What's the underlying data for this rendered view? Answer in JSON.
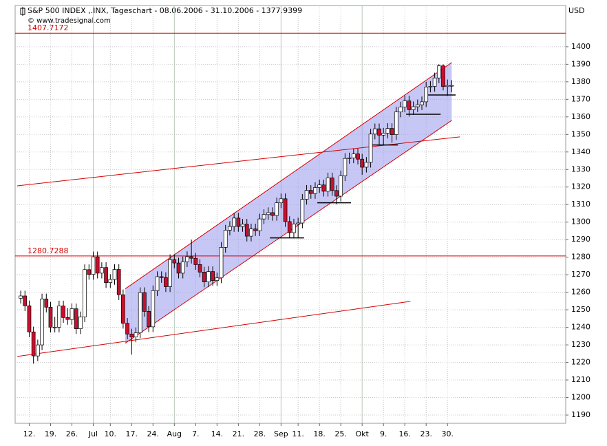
{
  "chart_data": {
    "type": "candlestick",
    "title": "S&P 500 INDEX ,.INX, Tageschart - 08.06.2006 - 31.10.2006 - 1377.9399",
    "subtitle": "© www.tradesignal.com",
    "y_unit": "USD",
    "xlim": [
      -1.3,
      127.7
    ],
    "ylim": [
      1185.3,
      1423.5
    ],
    "yticks": [
      1190,
      1200,
      1210,
      1220,
      1230,
      1240,
      1250,
      1260,
      1270,
      1280,
      1290,
      1300,
      1310,
      1320,
      1330,
      1340,
      1350,
      1360,
      1370,
      1380,
      1390,
      1400
    ],
    "xticks": [
      {
        "value": 2,
        "label": "12."
      },
      {
        "value": 7,
        "label": "19."
      },
      {
        "value": 12,
        "label": "26."
      },
      {
        "value": 17,
        "label": "Jul"
      },
      {
        "value": 21,
        "label": "10."
      },
      {
        "value": 26,
        "label": "17."
      },
      {
        "value": 31,
        "label": "24."
      },
      {
        "value": 36,
        "label": "Aug"
      },
      {
        "value": 41,
        "label": "7."
      },
      {
        "value": 46,
        "label": "14."
      },
      {
        "value": 51,
        "label": "21."
      },
      {
        "value": 56,
        "label": "28."
      },
      {
        "value": 61,
        "label": "Sep"
      },
      {
        "value": 65,
        "label": "11."
      },
      {
        "value": 70,
        "label": "18."
      },
      {
        "value": 75,
        "label": "25."
      },
      {
        "value": 80,
        "label": "Okt"
      },
      {
        "value": 85,
        "label": "9."
      },
      {
        "value": 90,
        "label": "16."
      },
      {
        "value": 95,
        "label": "23."
      },
      {
        "value": 100,
        "label": "30."
      }
    ],
    "grid": true,
    "up_color": "#ffffff",
    "down_color": "#c8102e",
    "ohlc": [
      [
        1256.6,
        1260.9,
        1253.6,
        1257.9
      ],
      [
        1257.9,
        1260.9,
        1249.3,
        1252.3
      ],
      [
        1252.3,
        1255.3,
        1234.4,
        1237.4
      ],
      [
        1237.4,
        1240.4,
        1219.3,
        1223.7
      ],
      [
        1223.7,
        1233.0,
        1220.7,
        1230.0
      ],
      [
        1230.0,
        1259.2,
        1227.0,
        1256.2
      ],
      [
        1256.2,
        1259.2,
        1248.5,
        1251.5
      ],
      [
        1251.5,
        1254.5,
        1237.1,
        1240.1
      ],
      [
        1240.1,
        1246.0,
        1237.1,
        1240.1
      ],
      [
        1240.1,
        1255.2,
        1237.1,
        1252.2
      ],
      [
        1252.2,
        1255.2,
        1242.6,
        1245.6
      ],
      [
        1245.6,
        1251.0,
        1241.5,
        1244.5
      ],
      [
        1244.5,
        1253.6,
        1241.5,
        1250.6
      ],
      [
        1250.6,
        1253.6,
        1236.2,
        1239.2
      ],
      [
        1239.2,
        1249.0,
        1236.2,
        1246.0
      ],
      [
        1246.0,
        1275.9,
        1243.0,
        1272.9
      ],
      [
        1272.9,
        1275.9,
        1267.2,
        1270.2
      ],
      [
        1270.2,
        1283.2,
        1267.2,
        1280.2
      ],
      [
        1280.2,
        1283.2,
        1267.9,
        1270.9
      ],
      [
        1270.9,
        1277.1,
        1267.9,
        1274.1
      ],
      [
        1274.1,
        1277.1,
        1262.5,
        1265.5
      ],
      [
        1265.5,
        1270.3,
        1262.5,
        1267.3
      ],
      [
        1267.3,
        1276.0,
        1264.3,
        1273.0
      ],
      [
        1273.0,
        1276.0,
        1255.6,
        1258.6
      ],
      [
        1258.6,
        1261.6,
        1239.3,
        1242.3
      ],
      [
        1242.3,
        1245.3,
        1233.2,
        1236.2
      ],
      [
        1236.2,
        1239.2,
        1224.5,
        1234.5
      ],
      [
        1234.5,
        1239.9,
        1231.5,
        1236.9
      ],
      [
        1236.9,
        1262.8,
        1233.9,
        1259.8
      ],
      [
        1259.8,
        1262.8,
        1246.1,
        1249.1
      ],
      [
        1249.1,
        1252.1,
        1237.3,
        1240.3
      ],
      [
        1240.3,
        1263.9,
        1237.3,
        1260.9
      ],
      [
        1260.9,
        1271.9,
        1257.9,
        1268.9
      ],
      [
        1268.9,
        1271.9,
        1265.4,
        1268.4
      ],
      [
        1268.4,
        1271.4,
        1260.2,
        1263.2
      ],
      [
        1263.2,
        1281.6,
        1260.2,
        1278.6
      ],
      [
        1278.6,
        1281.6,
        1273.7,
        1276.7
      ],
      [
        1276.7,
        1279.7,
        1267.9,
        1270.9
      ],
      [
        1270.9,
        1280.4,
        1267.9,
        1277.4
      ],
      [
        1277.4,
        1283.3,
        1274.4,
        1280.3
      ],
      [
        1280.3,
        1290.0,
        1276.4,
        1279.4
      ],
      [
        1279.4,
        1282.4,
        1272.8,
        1275.8
      ],
      [
        1275.8,
        1278.8,
        1268.5,
        1271.5
      ],
      [
        1271.5,
        1274.5,
        1262.9,
        1265.9
      ],
      [
        1265.9,
        1274.8,
        1262.9,
        1271.8
      ],
      [
        1271.8,
        1274.8,
        1263.7,
        1266.7
      ],
      [
        1266.7,
        1271.2,
        1263.7,
        1268.2
      ],
      [
        1268.2,
        1288.6,
        1265.2,
        1285.6
      ],
      [
        1285.6,
        1298.4,
        1282.6,
        1295.4
      ],
      [
        1295.4,
        1300.5,
        1292.4,
        1297.5
      ],
      [
        1297.5,
        1305.3,
        1294.5,
        1302.3
      ],
      [
        1302.3,
        1305.3,
        1294.5,
        1297.5
      ],
      [
        1297.5,
        1301.8,
        1294.5,
        1298.8
      ],
      [
        1298.8,
        1301.8,
        1289.0,
        1292.0
      ],
      [
        1292.0,
        1299.1,
        1289.0,
        1296.1
      ],
      [
        1296.1,
        1299.1,
        1292.1,
        1295.1
      ],
      [
        1295.1,
        1304.8,
        1292.1,
        1301.8
      ],
      [
        1301.8,
        1307.3,
        1298.8,
        1304.3
      ],
      [
        1304.3,
        1308.4,
        1301.3,
        1305.4
      ],
      [
        1305.4,
        1308.4,
        1300.8,
        1303.8
      ],
      [
        1303.8,
        1314.0,
        1300.8,
        1311.0
      ],
      [
        1311.0,
        1316.3,
        1308.0,
        1313.3
      ],
      [
        1313.3,
        1316.3,
        1297.3,
        1300.3
      ],
      [
        1300.3,
        1303.3,
        1291.0,
        1294.0
      ],
      [
        1294.0,
        1301.9,
        1291.0,
        1298.9
      ],
      [
        1298.9,
        1302.5,
        1290.8,
        1299.5
      ],
      [
        1299.5,
        1316.0,
        1296.5,
        1313.0
      ],
      [
        1313.0,
        1321.1,
        1310.0,
        1318.1
      ],
      [
        1318.1,
        1321.1,
        1313.3,
        1316.3
      ],
      [
        1316.3,
        1322.7,
        1313.3,
        1319.7
      ],
      [
        1319.7,
        1324.2,
        1316.7,
        1321.2
      ],
      [
        1321.2,
        1324.2,
        1314.6,
        1317.6
      ],
      [
        1317.6,
        1328.2,
        1314.6,
        1325.2
      ],
      [
        1325.2,
        1328.2,
        1315.0,
        1318.0
      ],
      [
        1318.0,
        1321.0,
        1310.1,
        1314.8
      ],
      [
        1314.8,
        1329.4,
        1311.8,
        1326.4
      ],
      [
        1326.4,
        1339.3,
        1323.4,
        1336.3
      ],
      [
        1336.3,
        1339.6,
        1333.3,
        1336.6
      ],
      [
        1336.6,
        1341.9,
        1333.6,
        1338.9
      ],
      [
        1338.9,
        1341.9,
        1332.9,
        1335.9
      ],
      [
        1335.9,
        1338.9,
        1327.0,
        1331.3
      ],
      [
        1331.3,
        1337.1,
        1328.3,
        1334.1
      ],
      [
        1334.1,
        1353.2,
        1331.1,
        1350.2
      ],
      [
        1350.2,
        1356.2,
        1347.2,
        1353.2
      ],
      [
        1353.2,
        1356.2,
        1344.0,
        1349.6
      ],
      [
        1349.6,
        1353.7,
        1344.0,
        1350.7
      ],
      [
        1350.7,
        1356.4,
        1347.7,
        1353.4
      ],
      [
        1353.4,
        1356.4,
        1345.3,
        1349.9
      ],
      [
        1349.9,
        1365.8,
        1346.9,
        1362.8
      ],
      [
        1362.8,
        1368.6,
        1359.8,
        1365.6
      ],
      [
        1365.6,
        1372.1,
        1362.6,
        1369.1
      ],
      [
        1369.1,
        1372.1,
        1360.2,
        1364.1
      ],
      [
        1364.1,
        1368.8,
        1361.1,
        1365.8
      ],
      [
        1365.8,
        1369.9,
        1362.8,
        1366.9
      ],
      [
        1366.9,
        1371.6,
        1363.9,
        1368.6
      ],
      [
        1368.6,
        1380.0,
        1365.6,
        1377.0
      ],
      [
        1377.0,
        1380.4,
        1374.0,
        1377.4
      ],
      [
        1377.4,
        1385.2,
        1374.4,
        1382.2
      ],
      [
        1382.2,
        1390.0,
        1379.2,
        1389.1
      ],
      [
        1389.1,
        1390.0,
        1375.1,
        1377.3
      ],
      [
        1377.3,
        1381.3,
        1372.0,
        1377.9
      ],
      [
        1377.9,
        1381.0,
        1374.0,
        1377.9
      ]
    ],
    "levels": [
      1407.7172,
      1280.7288
    ],
    "level_color": "#d40000",
    "channel": {
      "x": [
        24.5,
        101
      ],
      "upper": [
        1262,
        1391
      ],
      "lower": [
        1231,
        1358
      ],
      "color": "#9999ee"
    },
    "trendlines": [
      {
        "x": [
          -0.8,
          102.9
        ],
        "y": [
          1320.7,
          1348.6
        ]
      },
      {
        "x": [
          -0.8,
          91.3
        ],
        "y": [
          1223.4,
          1254.8
        ]
      }
    ],
    "support_lines": [
      {
        "x": [
          58.4,
          66.4
        ],
        "y": 1291
      },
      {
        "x": [
          69.5,
          77.4
        ],
        "y": 1311
      },
      {
        "x": [
          82.2,
          88.4
        ],
        "y": 1344
      },
      {
        "x": [
          90.3,
          98.4
        ],
        "y": 1361.5
      },
      {
        "x": [
          95.2,
          101.9
        ],
        "y": 1372.5
      }
    ]
  }
}
